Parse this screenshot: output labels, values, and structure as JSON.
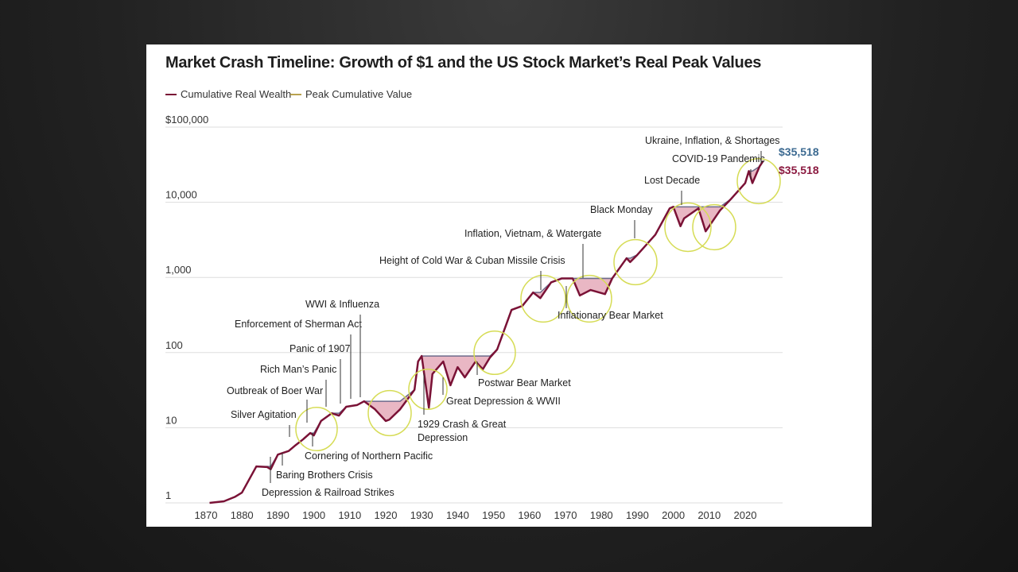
{
  "colors": {
    "wealth": "#7a1236",
    "peak": "#b9a24f",
    "drawdown_fill": "#e9b7c4",
    "circle": "#d6dc55",
    "value_blue": "#3c6a91",
    "value_maroon": "#8b1a40",
    "grid": "#dddddd"
  },
  "chart_data": {
    "type": "line",
    "title": "Market Crash Timeline: Growth of $1 and the US Stock Market’s Real Peak Values",
    "xlabel": "",
    "ylabel": "",
    "y_scale": "log",
    "ylim": [
      1,
      100000
    ],
    "xlim": [
      1870,
      2027
    ],
    "grid": "horizontal",
    "legend_position": "top-left",
    "y_ticks": [
      "1",
      "10",
      "100",
      "1,000",
      "10,000",
      "$100,000"
    ],
    "x_ticks": [
      "1870",
      "1880",
      "1890",
      "1900",
      "1910",
      "1920",
      "1930",
      "1940",
      "1950",
      "1960",
      "1970",
      "1980",
      "1990",
      "2000",
      "2010",
      "2020"
    ],
    "x": [
      1871,
      1875,
      1878,
      1880,
      1884,
      1887,
      1888,
      1890,
      1893,
      1895,
      1897,
      1899,
      1900,
      1902,
      1905,
      1907,
      1909,
      1912,
      1914,
      1917,
      1920,
      1921,
      1924,
      1928,
      1929,
      1930,
      1932,
      1933,
      1936,
      1938,
      1940,
      1942,
      1945,
      1947,
      1949,
      1951,
      1955,
      1958,
      1961,
      1963,
      1966,
      1969,
      1972,
      1974,
      1977,
      1981,
      1983,
      1987,
      1988,
      1990,
      1995,
      1999,
      2000,
      2002,
      2003,
      2007,
      2009,
      2013,
      2016,
      2020,
      2021,
      2022,
      2024,
      2025
    ],
    "series": [
      {
        "name": "Cumulative Real Wealth",
        "values": [
          1,
          1.05,
          1.2,
          1.37,
          3.05,
          3,
          2.8,
          4.4,
          4.9,
          5.9,
          7,
          8.5,
          7.9,
          12.3,
          15.6,
          14.5,
          19,
          20,
          22.5,
          17.6,
          12.3,
          12.8,
          17.6,
          32,
          76,
          90,
          18.5,
          52,
          76,
          36.7,
          64,
          46.8,
          76,
          60,
          86,
          110,
          370,
          418,
          630,
          530,
          860,
          970,
          970,
          575,
          680,
          600,
          970,
          1800,
          1600,
          2000,
          3700,
          8300,
          8700,
          4800,
          6100,
          8300,
          4100,
          7800,
          11000,
          18000,
          26000,
          18000,
          30000,
          35518
        ]
      },
      {
        "name": "Peak Cumulative Value",
        "values": [
          1,
          1.05,
          1.2,
          1.37,
          3.05,
          3.05,
          3.05,
          4.4,
          4.9,
          5.9,
          7,
          8.5,
          8.5,
          12.3,
          15.6,
          15.6,
          19,
          20,
          22.5,
          22.5,
          22.5,
          22.5,
          22.5,
          32,
          76,
          90,
          90,
          90,
          90,
          90,
          90,
          90,
          90,
          90,
          90,
          110,
          370,
          418,
          630,
          630,
          860,
          970,
          970,
          970,
          970,
          970,
          970,
          1800,
          1800,
          2000,
          3700,
          8300,
          8700,
          8700,
          8700,
          8700,
          8700,
          8700,
          11000,
          18000,
          26000,
          26000,
          30000,
          35518
        ]
      }
    ],
    "end_values": {
      "peak": "$35,518",
      "wealth": "$35,518"
    },
    "annotations": [
      "Depression & Railroad Strikes",
      "Baring Brothers Crisis",
      "Cornering of Northern Pacific",
      "Silver Agitation",
      "Outbreak of Boer War",
      "Rich Man’s Panic",
      "Panic of 1907",
      "Enforcement of Sherman Act",
      "WWI & Influenza",
      "1929 Crash & Great",
      "Depression",
      "Great Depression & WWII",
      "Postwar Bear Market",
      "Height of Cold War & Cuban Missile Crisis",
      "Inflation, Vietnam, & Watergate",
      "Inflationary Bear Market",
      "Black Monday",
      "Lost Decade",
      "COVID-19 Pandemic",
      "Ukraine, Inflation, & Shortages"
    ]
  }
}
